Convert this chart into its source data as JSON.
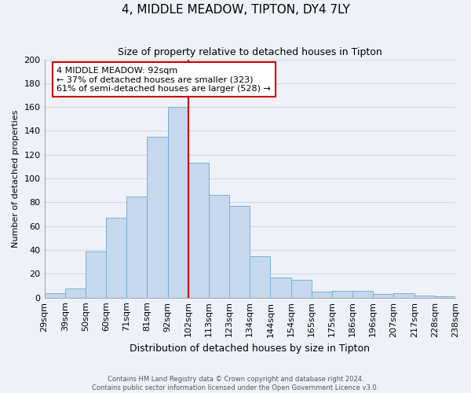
{
  "title": "4, MIDDLE MEADOW, TIPTON, DY4 7LY",
  "subtitle": "Size of property relative to detached houses in Tipton",
  "xlabel": "Distribution of detached houses by size in Tipton",
  "ylabel": "Number of detached properties",
  "bin_labels": [
    "29sqm",
    "39sqm",
    "50sqm",
    "60sqm",
    "71sqm",
    "81sqm",
    "92sqm",
    "102sqm",
    "113sqm",
    "123sqm",
    "134sqm",
    "144sqm",
    "154sqm",
    "165sqm",
    "175sqm",
    "186sqm",
    "196sqm",
    "207sqm",
    "217sqm",
    "228sqm",
    "238sqm"
  ],
  "bar_values": [
    4,
    8,
    39,
    67,
    85,
    135,
    160,
    113,
    86,
    77,
    35,
    17,
    15,
    5,
    6,
    6,
    3,
    4,
    2,
    1
  ],
  "bar_color": "#c5d8ed",
  "bar_edge_color": "#7aafd4",
  "vline_bin": 6,
  "vline_color": "#cc0000",
  "ylim": [
    0,
    200
  ],
  "yticks": [
    0,
    20,
    40,
    60,
    80,
    100,
    120,
    140,
    160,
    180,
    200
  ],
  "annotation_title": "4 MIDDLE MEADOW: 92sqm",
  "annotation_line1": "← 37% of detached houses are smaller (323)",
  "annotation_line2": "61% of semi-detached houses are larger (528) →",
  "annotation_box_facecolor": "#ffffff",
  "annotation_box_edgecolor": "#cc0000",
  "footer1": "Contains HM Land Registry data © Crown copyright and database right 2024.",
  "footer2": "Contains public sector information licensed under the Open Government Licence v3.0.",
  "grid_color": "#ccd9e8",
  "background_color": "#eef2f8"
}
